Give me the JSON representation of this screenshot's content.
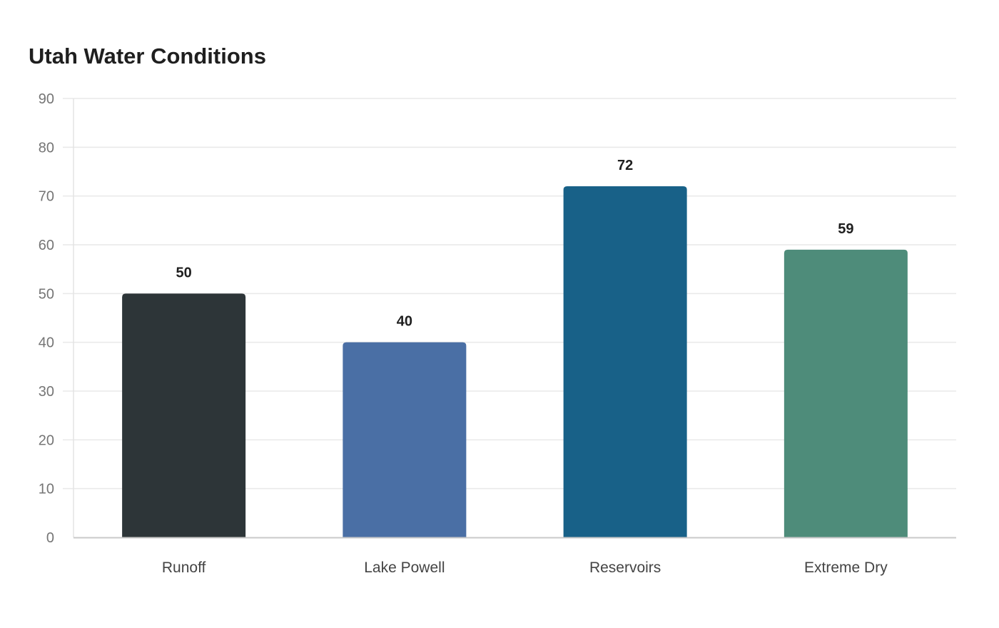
{
  "chart_data": {
    "type": "bar",
    "title": "Utah Water Conditions",
    "categories": [
      "Runoff",
      "Lake Powell",
      "Reservoirs",
      "Extreme Dry"
    ],
    "values": [
      50,
      40,
      72,
      59
    ],
    "colors": [
      "#2d3538",
      "#4a6fa5",
      "#186188",
      "#4e8c7a"
    ],
    "xlabel": "",
    "ylabel": "",
    "ylim": [
      0,
      90
    ],
    "yticks": [
      0,
      10,
      20,
      30,
      40,
      50,
      60,
      70,
      80,
      90
    ],
    "grid": true,
    "legend": "none",
    "data_labels": true
  }
}
